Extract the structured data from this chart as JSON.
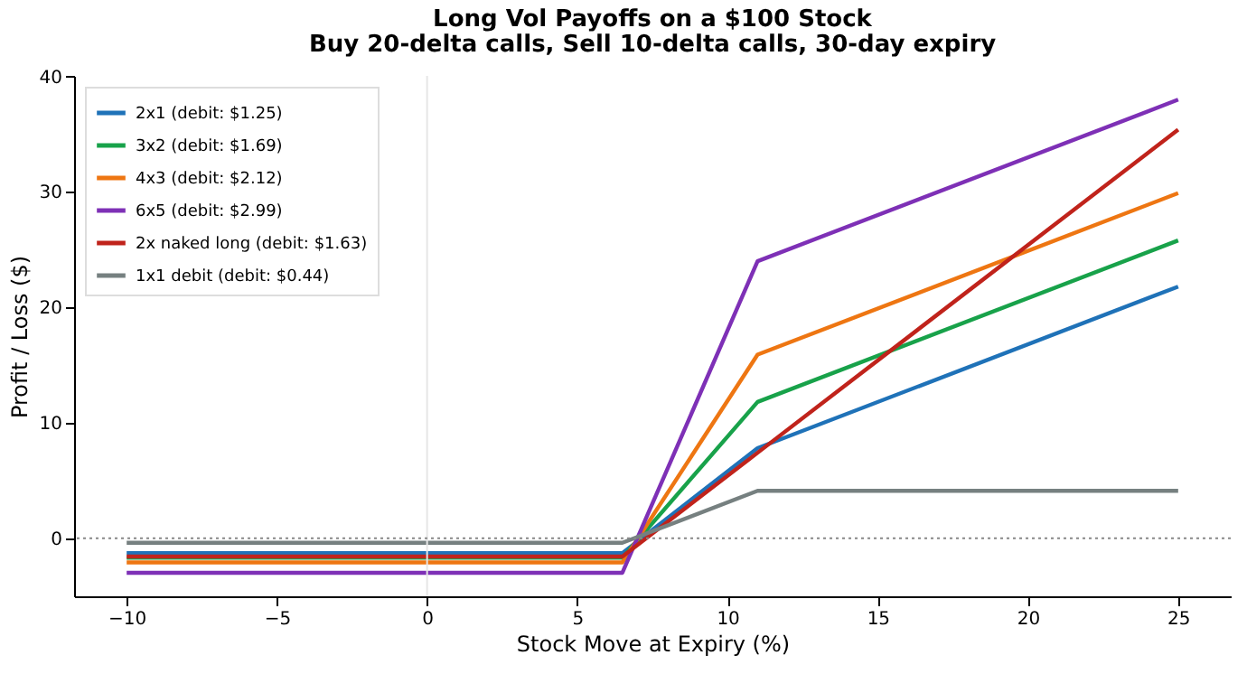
{
  "chart_data": {
    "type": "line",
    "title": "Long Vol Payoffs on a $100 Stock",
    "subtitle": "Buy 20-delta calls, Sell 10-delta calls, 30-day expiry",
    "xlabel": "Stock Move at Expiry (%)",
    "ylabel": "Profit / Loss ($)",
    "x": [
      -10,
      6.5,
      11,
      25
    ],
    "series": [
      {
        "name": "2x1 (debit: $1.25)",
        "color": "#1f72b8",
        "values": [
          -1.3,
          -1.3,
          7.8,
          21.8
        ]
      },
      {
        "name": "3x2 (debit: $1.69)",
        "color": "#18a24a",
        "values": [
          -1.7,
          -1.7,
          11.8,
          25.8
        ]
      },
      {
        "name": "4x3 (debit: $2.12)",
        "color": "#ee7612",
        "values": [
          -2.1,
          -2.1,
          15.9,
          29.9
        ]
      },
      {
        "name": "6x5 (debit: $2.99)",
        "color": "#7e30b6",
        "values": [
          -3.0,
          -3.0,
          24.0,
          38.0
        ]
      },
      {
        "name": "2x naked long (debit: $1.63)",
        "color": "#c0231b",
        "values": [
          -1.6,
          -1.6,
          7.4,
          35.4
        ]
      },
      {
        "name": "1x1 debit (debit: $0.44)",
        "color": "#768080",
        "values": [
          -0.4,
          -0.4,
          4.1,
          4.1
        ]
      }
    ],
    "xlim": [
      -11.75,
      26.75
    ],
    "xticks": [
      -10,
      -5,
      0,
      5,
      10,
      15,
      20,
      25
    ],
    "ylim": [
      -5.04,
      40.06
    ],
    "yticks": [
      0,
      10,
      20,
      30,
      40
    ],
    "ref_lines": [
      {
        "axis": "x",
        "value": 0,
        "color": "#e6e6e6",
        "line_style": "solid"
      },
      {
        "axis": "y",
        "value": 0,
        "color": "#888888",
        "line_style": "dotted"
      }
    ],
    "grid": false,
    "legend": "top left",
    "marker": "none",
    "line_style": "solid"
  }
}
